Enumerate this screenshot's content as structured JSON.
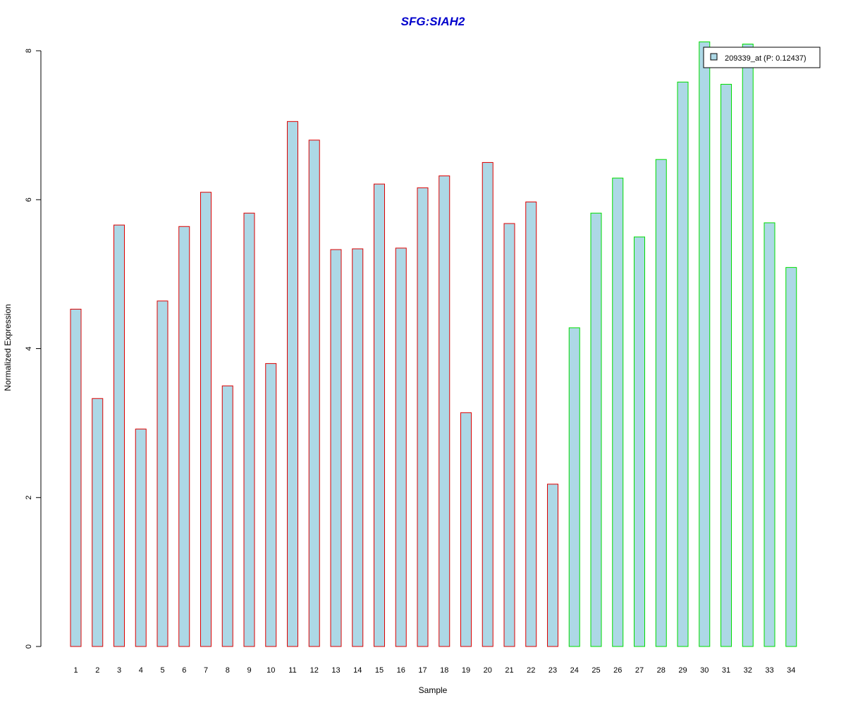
{
  "chart_data": {
    "type": "bar",
    "title": "SFG:SIAH2",
    "title_color": "#0000CC",
    "xlabel": "Sample",
    "ylabel": "Normalized Expression",
    "ylim": [
      0,
      8
    ],
    "yticks": [
      "0",
      "2",
      "4",
      "6",
      "8"
    ],
    "categories": [
      "1",
      "2",
      "3",
      "4",
      "5",
      "6",
      "7",
      "8",
      "9",
      "10",
      "11",
      "12",
      "13",
      "14",
      "15",
      "16",
      "17",
      "18",
      "19",
      "20",
      "21",
      "22",
      "23",
      "24",
      "25",
      "26",
      "27",
      "28",
      "29",
      "30",
      "31",
      "32",
      "33",
      "34"
    ],
    "series": [
      {
        "name": "209339_at (P: 0.12437)",
        "values": [
          4.53,
          3.33,
          5.66,
          2.92,
          4.64,
          5.64,
          6.1,
          3.5,
          5.82,
          3.8,
          7.05,
          6.8,
          5.33,
          5.34,
          6.21,
          5.35,
          6.16,
          6.32,
          3.14,
          6.5,
          5.68,
          5.97,
          2.18,
          4.28,
          5.82,
          6.29,
          5.5,
          6.54,
          7.58,
          8.12,
          7.55,
          8.09,
          5.69,
          5.09
        ],
        "fill": "#ADD8E6",
        "group_border_colors": [
          "#DD0000",
          "#DD0000",
          "#DD0000",
          "#DD0000",
          "#DD0000",
          "#DD0000",
          "#DD0000",
          "#DD0000",
          "#DD0000",
          "#DD0000",
          "#DD0000",
          "#DD0000",
          "#DD0000",
          "#DD0000",
          "#DD0000",
          "#DD0000",
          "#DD0000",
          "#DD0000",
          "#DD0000",
          "#DD0000",
          "#DD0000",
          "#DD0000",
          "#DD0000",
          "#00DD00",
          "#00DD00",
          "#00DD00",
          "#00DD00",
          "#00DD00",
          "#00DD00",
          "#00DD00",
          "#00DD00",
          "#00DD00",
          "#00DD00",
          "#00DD00"
        ]
      }
    ],
    "legend": {
      "placement": "top-right",
      "label": "209339_at (P: 0.12437)"
    },
    "grid": false
  }
}
